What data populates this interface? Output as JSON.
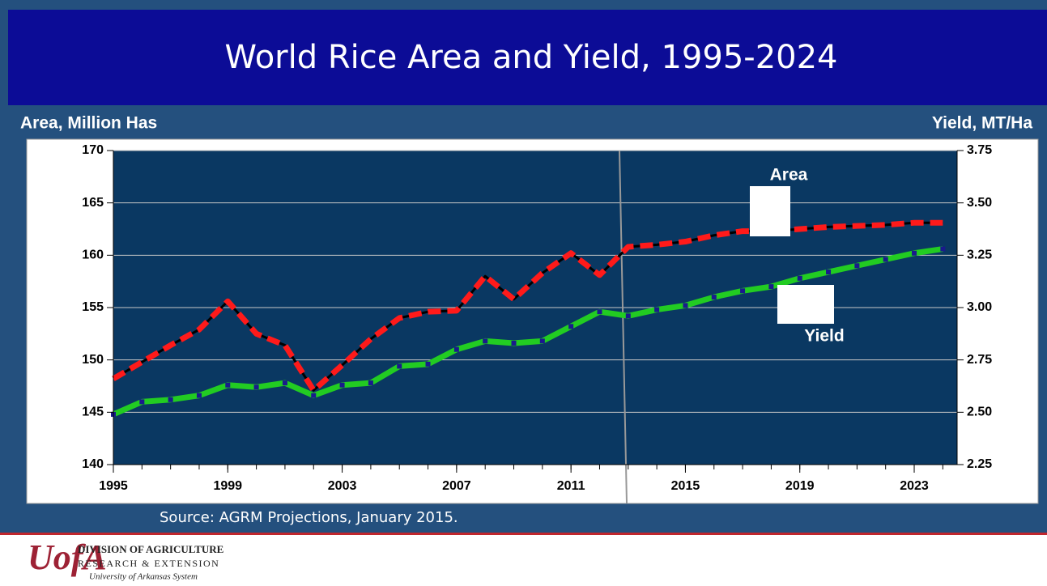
{
  "chart_data": {
    "type": "line",
    "title": "World Rice Area and Yield, 1995-2024",
    "ylabel": "Area, Million Has",
    "y2label": "Yield, MT/Ha",
    "x": [
      1995,
      1996,
      1997,
      1998,
      1999,
      2000,
      2001,
      2002,
      2003,
      2004,
      2005,
      2006,
      2007,
      2008,
      2009,
      2010,
      2011,
      2012,
      2013,
      2014,
      2015,
      2016,
      2017,
      2018,
      2019,
      2020,
      2021,
      2022,
      2023,
      2024
    ],
    "series": [
      {
        "name": "Area",
        "color": "#ff1a1a",
        "values": [
          148.2,
          149.8,
          151.4,
          152.9,
          155.6,
          152.5,
          151.4,
          147.1,
          149.5,
          152.0,
          154.0,
          154.6,
          154.7,
          158.0,
          155.8,
          158.3,
          160.2,
          158.1,
          160.8,
          161.0,
          161.3,
          161.9,
          162.3,
          162.3,
          162.5,
          162.7,
          162.8,
          162.9,
          163.1,
          163.1
        ]
      },
      {
        "name": "Yield",
        "color": "#22cc22",
        "axis": "y2",
        "values": [
          2.49,
          2.55,
          2.56,
          2.58,
          2.63,
          2.62,
          2.64,
          2.58,
          2.63,
          2.64,
          2.72,
          2.73,
          2.8,
          2.84,
          2.83,
          2.84,
          2.91,
          2.98,
          2.96,
          2.99,
          3.01,
          3.05,
          3.08,
          3.1,
          3.14,
          3.17,
          3.2,
          3.23,
          3.26,
          3.28
        ]
      }
    ],
    "xlim": [
      1995,
      2024.5
    ],
    "xticks": [
      1995,
      1999,
      2003,
      2007,
      2011,
      2015,
      2019,
      2023
    ],
    "ylim": [
      140,
      170
    ],
    "yticks": [
      140,
      145,
      150,
      155,
      160,
      165,
      170
    ],
    "y2lim": [
      2.25,
      3.75
    ],
    "y2ticks": [
      2.25,
      {
        "value": 2.5,
        "label": "2.50"
      },
      2.75,
      {
        "value": 3.0,
        "label": "3.00"
      },
      3.25,
      {
        "value": 3.5,
        "label": "3.50"
      },
      3.75
    ],
    "grid": true
  },
  "source": "Source: AGRM Projections, January 2015.",
  "footer": {
    "logo": "UofA",
    "line1": "DIVISION OF AGRICULTURE",
    "line2": "RESEARCH & EXTENSION",
    "line3": "University of Arkansas System"
  }
}
